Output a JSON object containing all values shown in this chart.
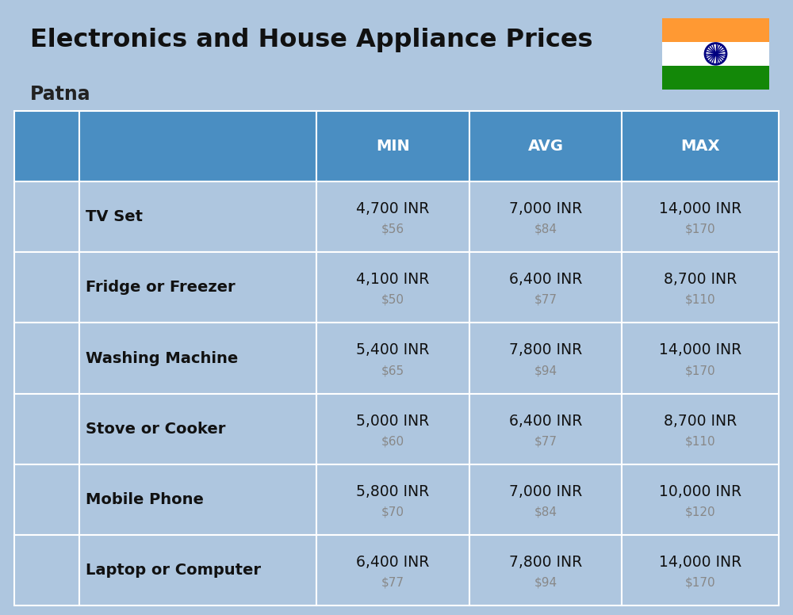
{
  "title_real": "Electronics and House Appliance Prices",
  "subtitle": "Patna",
  "background_color": "#aec6df",
  "header_color": "#4a8ec2",
  "header_text_color": "#ffffff",
  "item_name_color": "#111111",
  "inr_color": "#111111",
  "usd_color": "#888888",
  "col_headers": [
    "MIN",
    "AVG",
    "MAX"
  ],
  "items": [
    {
      "name": "TV Set",
      "min_inr": "4,700 INR",
      "min_usd": "$56",
      "avg_inr": "7,000 INR",
      "avg_usd": "$84",
      "max_inr": "14,000 INR",
      "max_usd": "$170"
    },
    {
      "name": "Fridge or Freezer",
      "min_inr": "4,100 INR",
      "min_usd": "$50",
      "avg_inr": "6,400 INR",
      "avg_usd": "$77",
      "max_inr": "8,700 INR",
      "max_usd": "$110"
    },
    {
      "name": "Washing Machine",
      "min_inr": "5,400 INR",
      "min_usd": "$65",
      "avg_inr": "7,800 INR",
      "avg_usd": "$94",
      "max_inr": "14,000 INR",
      "max_usd": "$170"
    },
    {
      "name": "Stove or Cooker",
      "min_inr": "5,000 INR",
      "min_usd": "$60",
      "avg_inr": "6,400 INR",
      "avg_usd": "$77",
      "max_inr": "8,700 INR",
      "max_usd": "$110"
    },
    {
      "name": "Mobile Phone",
      "min_inr": "5,800 INR",
      "min_usd": "$70",
      "avg_inr": "7,000 INR",
      "avg_usd": "$84",
      "max_inr": "10,000 INR",
      "max_usd": "$120"
    },
    {
      "name": "Laptop or Computer",
      "min_inr": "6,400 INR",
      "min_usd": "$77",
      "avg_inr": "7,800 INR",
      "avg_usd": "$94",
      "max_inr": "14,000 INR",
      "max_usd": "$170"
    }
  ],
  "flag_orange": "#FF9933",
  "flag_white": "#FFFFFF",
  "flag_green": "#138808",
  "flag_navy": "#000080"
}
